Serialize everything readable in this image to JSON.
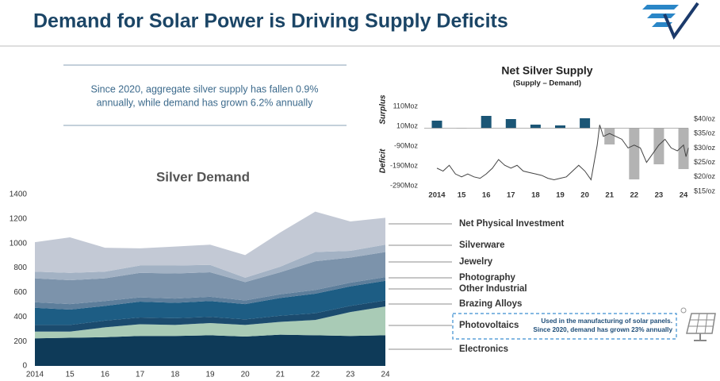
{
  "header": {
    "title": "Demand for Solar Power is Driving Supply Deficits"
  },
  "callout": {
    "lines": [
      "Since 2020, aggregate silver supply has fallen 0.9%",
      "annually, while demand has grown 6.2% annually"
    ]
  },
  "chart_data": [
    {
      "type": "area",
      "stacked": true,
      "title": "Silver Demand",
      "categories": [
        "2014",
        "15",
        "16",
        "17",
        "18",
        "19",
        "20",
        "21",
        "22",
        "23",
        "24"
      ],
      "ylim": [
        0,
        1400
      ],
      "yticks": [
        0,
        200,
        400,
        600,
        800,
        1000,
        1200,
        1400
      ],
      "series": [
        {
          "name": "Electronics",
          "color": "#0e3a58",
          "values": [
            225,
            230,
            235,
            245,
            245,
            250,
            240,
            255,
            250,
            245,
            250
          ]
        },
        {
          "name": "Photovoltaics",
          "color": "#a9cbb6",
          "values": [
            55,
            50,
            80,
            95,
            90,
            100,
            95,
            105,
            125,
            195,
            235
          ],
          "note": [
            "Used in the manufacturing of solar panels.",
            "Since 2020, demand has grown 23% annually"
          ]
        },
        {
          "name": "Brazing Alloys",
          "color": "#1b4b6e",
          "values": [
            55,
            55,
            55,
            55,
            55,
            50,
            45,
            50,
            55,
            50,
            50
          ]
        },
        {
          "name": "Other Industrial",
          "color": "#1d5d84",
          "values": [
            140,
            125,
            120,
            130,
            125,
            130,
            125,
            145,
            160,
            160,
            160
          ]
        },
        {
          "name": "Photography",
          "color": "#5d7e9b",
          "values": [
            45,
            45,
            40,
            35,
            35,
            35,
            30,
            30,
            30,
            30,
            30
          ]
        },
        {
          "name": "Jewelry",
          "color": "#7c93ab",
          "values": [
            195,
            195,
            185,
            200,
            205,
            200,
            150,
            180,
            235,
            205,
            205
          ]
        },
        {
          "name": "Silverware",
          "color": "#a3b2c4",
          "values": [
            55,
            60,
            55,
            60,
            65,
            60,
            35,
            45,
            75,
            55,
            60
          ]
        },
        {
          "name": "Net Physical Investment",
          "color": "#c3c9d5",
          "values": [
            240,
            290,
            195,
            140,
            155,
            165,
            185,
            280,
            330,
            240,
            220
          ]
        }
      ]
    },
    {
      "type": "bar",
      "title": "Net Silver Supply",
      "subtitle": "(Supply – Demand)",
      "surplus_label": "Surplus",
      "deficit_label": "Deficit",
      "categories": [
        "2014",
        "15",
        "16",
        "17",
        "18",
        "19",
        "20",
        "21",
        "22",
        "23",
        "24"
      ],
      "values": [
        38,
        -2,
        62,
        46,
        18,
        14,
        50,
        -82,
        -258,
        -182,
        -206
      ],
      "color": "#1b5676",
      "negative_color": "#b3b3b3",
      "ylim": [
        -290,
        110
      ],
      "yticks": [
        {
          "value": 110,
          "label": "110Moz"
        },
        {
          "value": 10,
          "label": "10Moz"
        },
        {
          "value": -90,
          "label": "-90Moz"
        },
        {
          "value": -190,
          "label": "-190Moz"
        },
        {
          "value": -290,
          "label": "-290Moz"
        }
      ],
      "y2lim": [
        15,
        40
      ],
      "y2ticks": [
        {
          "value": 40,
          "label": "$40/oz"
        },
        {
          "value": 35,
          "label": "$35/oz"
        },
        {
          "value": 30,
          "label": "$30/oz"
        },
        {
          "value": 25,
          "label": "$25/oz"
        },
        {
          "value": 20,
          "label": "$20/oz"
        },
        {
          "value": 15,
          "label": "$15/oz"
        }
      ],
      "line": {
        "axis": "y2",
        "color": "#444444",
        "x": [
          2014,
          2014.25,
          2014.5,
          2014.75,
          2015,
          2015.25,
          2015.5,
          2015.75,
          2016,
          2016.25,
          2016.5,
          2016.75,
          2017,
          2017.25,
          2017.5,
          2017.75,
          2018,
          2018.25,
          2018.5,
          2018.75,
          2019,
          2019.25,
          2019.5,
          2019.75,
          2020,
          2020.25,
          2020.5,
          2020.6,
          2020.75,
          2021,
          2021.25,
          2021.5,
          2021.75,
          2022,
          2022.25,
          2022.5,
          2022.75,
          2023,
          2023.25,
          2023.5,
          2023.75,
          2024,
          2024.1,
          2024.2
        ],
        "values": [
          23,
          22,
          24,
          21,
          20,
          21,
          20,
          19.5,
          21,
          23,
          26,
          24,
          23,
          24,
          22,
          21.5,
          21,
          20.5,
          19.5,
          19,
          19.5,
          20,
          22,
          24,
          22,
          19,
          31,
          38,
          34,
          35,
          34,
          33,
          30,
          31,
          30,
          25,
          28,
          31,
          33,
          30,
          29,
          31,
          27,
          30
        ]
      }
    }
  ]
}
